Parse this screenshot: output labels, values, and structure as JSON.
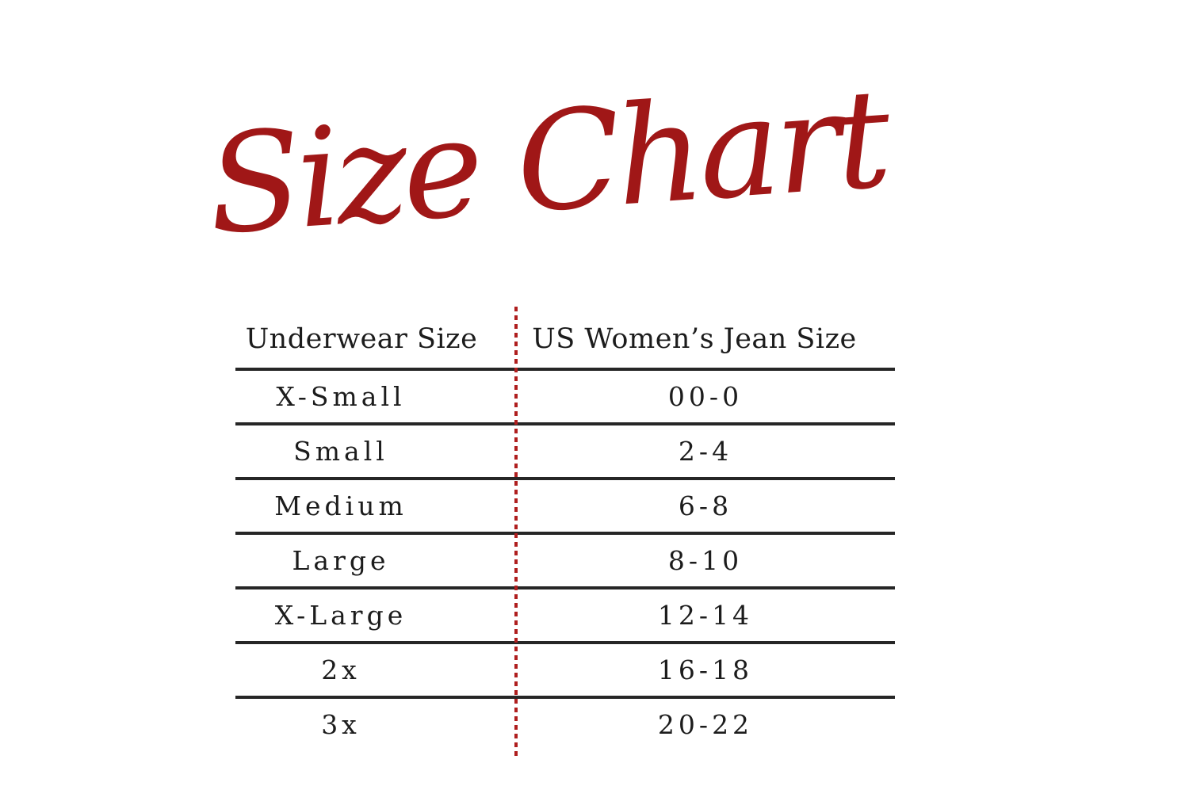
{
  "title": {
    "text": "Size Chart",
    "color": "#A01717"
  },
  "table": {
    "columns": [
      "Underwear Size",
      "US Women’s Jean Size"
    ],
    "rows": [
      {
        "size": "X-Small",
        "jeans": "00-0"
      },
      {
        "size": "Small",
        "jeans": "2-4"
      },
      {
        "size": "Medium",
        "jeans": "6-8"
      },
      {
        "size": "Large",
        "jeans": "8-10"
      },
      {
        "size": "X-Large",
        "jeans": "12-14"
      },
      {
        "size": "2x",
        "jeans": "16-18"
      },
      {
        "size": "3x",
        "jeans": "20-22"
      }
    ],
    "rule_color": "#262626",
    "divider_color": "#AF1E1E",
    "text_color": "#1c1c1c",
    "background_color": "#ffffff"
  },
  "chart_data": {
    "type": "table",
    "title": "Size Chart",
    "columns": [
      "Underwear Size",
      "US Women’s Jean Size"
    ],
    "rows": [
      [
        "X-Small",
        "00-0"
      ],
      [
        "Small",
        "2-4"
      ],
      [
        "Medium",
        "6-8"
      ],
      [
        "Large",
        "8-10"
      ],
      [
        "X-Large",
        "12-14"
      ],
      [
        "2x",
        "16-18"
      ],
      [
        "3x",
        "20-22"
      ]
    ],
    "layout": {
      "grid": "horizontal rules between rows, dotted red vertical divider between columns",
      "title_style": "red handwritten script, centered above table"
    }
  }
}
